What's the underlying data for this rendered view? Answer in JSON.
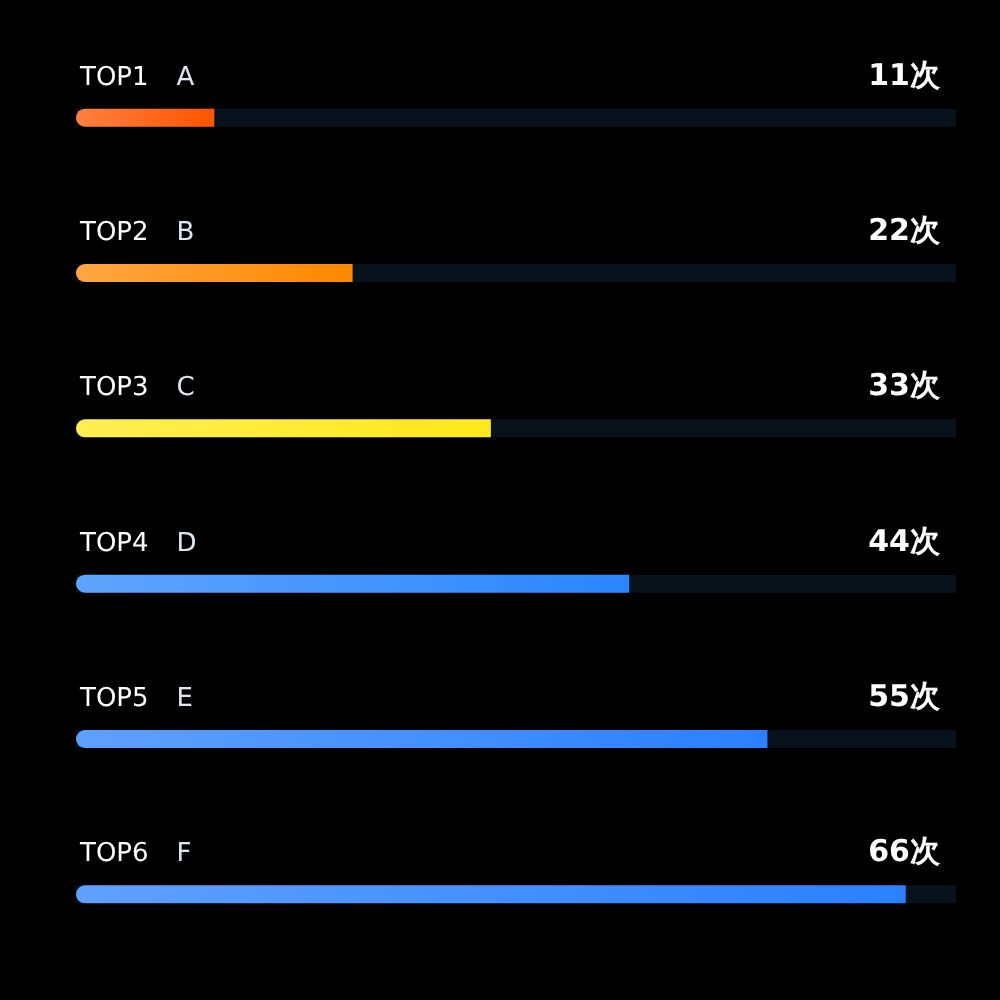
{
  "chart_data": {
    "type": "bar",
    "orientation": "horizontal",
    "categories": [
      "TOP1 A",
      "TOP2 B",
      "TOP3 C",
      "TOP4 D",
      "TOP5 E",
      "TOP6 F"
    ],
    "values": [
      11,
      22,
      33,
      44,
      55,
      66
    ],
    "colors": [
      "#ff5500",
      "#ff8800",
      "#ffe81a",
      "#2a86ff",
      "#2a80ff",
      "#2a80ff"
    ],
    "value_labels": [
      "11次",
      "22次",
      "33次",
      "44次",
      "55次",
      "66次"
    ],
    "xlim": [
      0,
      70
    ],
    "tick_labels": false
  }
}
